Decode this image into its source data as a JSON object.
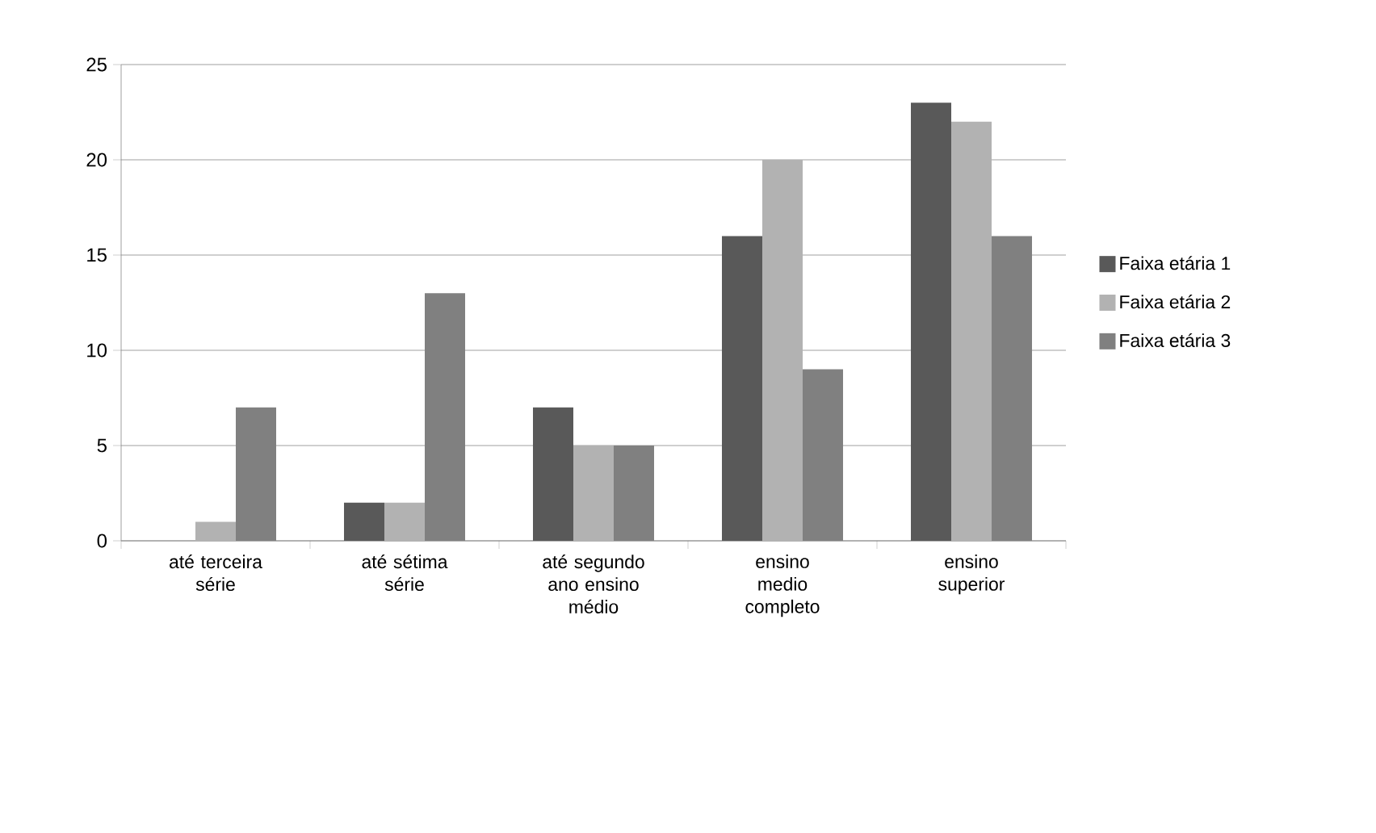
{
  "chart_data": {
    "type": "bar",
    "categories": [
      "até terceira série",
      "até sétima série",
      "até segundo ano ensino médio",
      "ensino medio completo",
      "ensino superior"
    ],
    "series": [
      {
        "name": "Faixa etária 1",
        "color": "#595959",
        "values": [
          0,
          2,
          7,
          16,
          23
        ]
      },
      {
        "name": "Faixa etária 2",
        "color": "#b2b2b2",
        "values": [
          1,
          2,
          5,
          20,
          22
        ]
      },
      {
        "name": "Faixa etária 3",
        "color": "#808080",
        "values": [
          7,
          13,
          5,
          9,
          16
        ]
      }
    ],
    "ylim": [
      0,
      25
    ],
    "yticks": [
      0,
      5,
      10,
      15,
      20,
      25
    ],
    "grid": "y",
    "legend": "right"
  }
}
